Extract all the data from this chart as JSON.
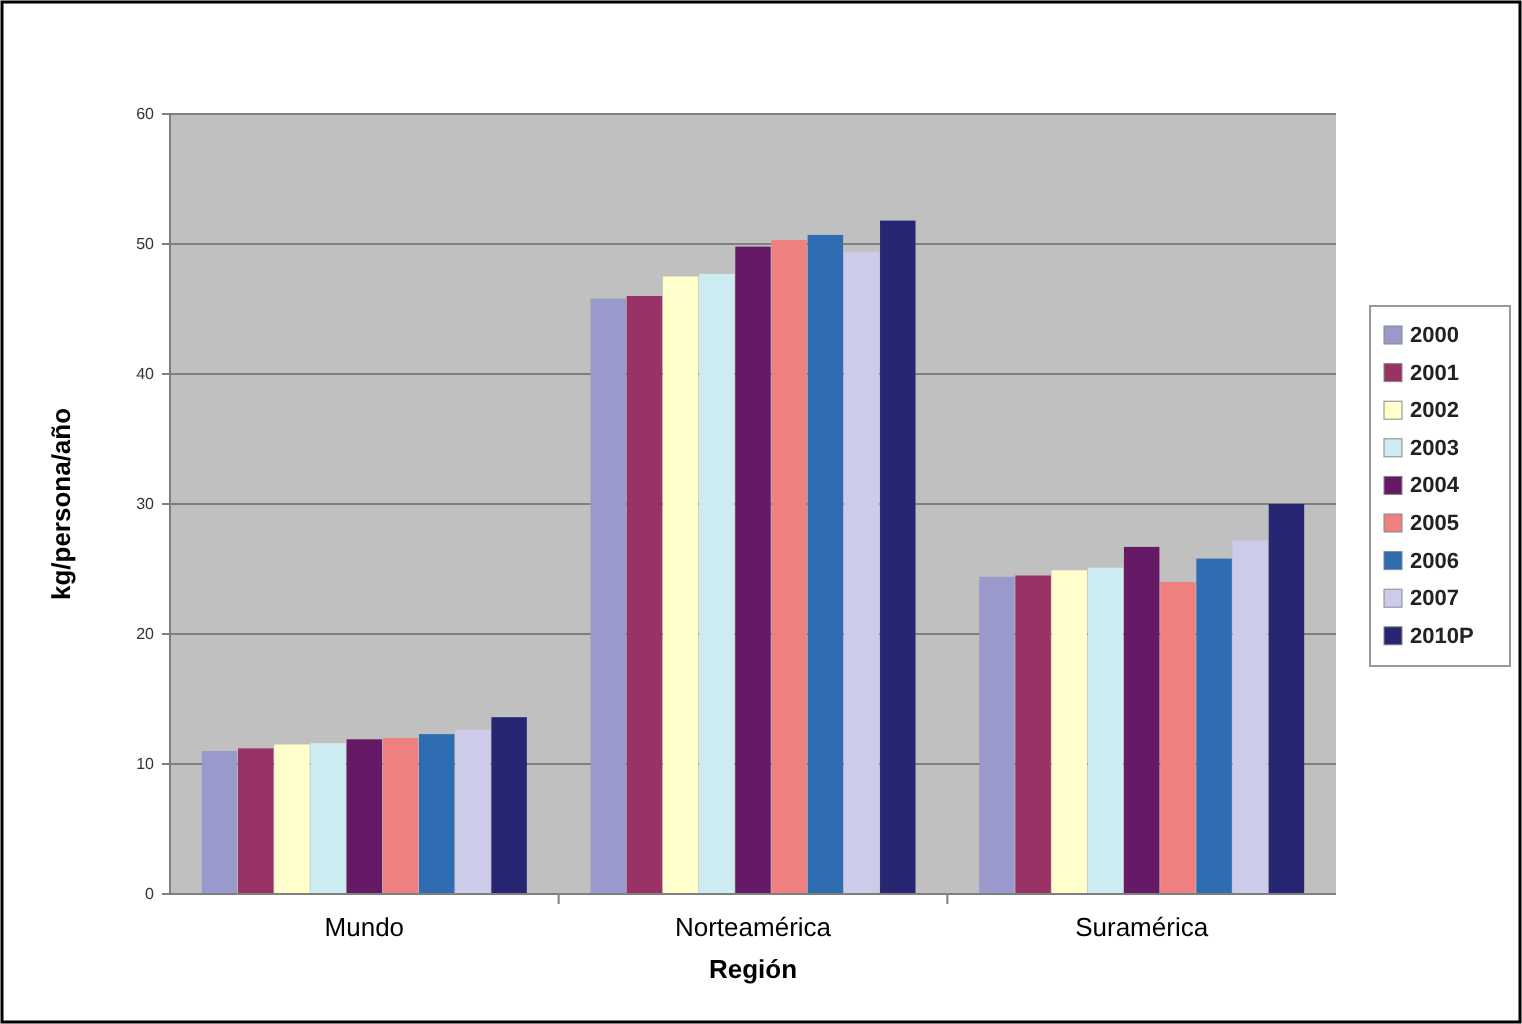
{
  "chart_data": {
    "type": "bar",
    "xlabel": "Región",
    "ylabel": "kg/persona/año",
    "categories": [
      "Mundo",
      "Norteamérica",
      "Suramérica"
    ],
    "series": [
      {
        "name": "2000",
        "color": "#9999cc",
        "values": [
          11,
          45.8,
          24.4
        ]
      },
      {
        "name": "2001",
        "color": "#993366",
        "values": [
          11.2,
          46,
          24.5
        ]
      },
      {
        "name": "2002",
        "color": "#ffffcc",
        "values": [
          11.5,
          47.5,
          24.9
        ]
      },
      {
        "name": "2003",
        "color": "#ccecf2",
        "values": [
          11.6,
          47.7,
          25.1
        ]
      },
      {
        "name": "2004",
        "color": "#661a66",
        "values": [
          11.9,
          49.8,
          26.7
        ]
      },
      {
        "name": "2005",
        "color": "#f08080",
        "values": [
          12,
          50.3,
          24
        ]
      },
      {
        "name": "2006",
        "color": "#2f6db3",
        "values": [
          12.3,
          50.7,
          25.8
        ]
      },
      {
        "name": "2007",
        "color": "#ccccea",
        "values": [
          12.6,
          49.4,
          27.2
        ]
      },
      {
        "name": "2010P",
        "color": "#262673",
        "values": [
          13.6,
          51.8,
          30
        ]
      }
    ],
    "ylim": [
      0,
      60
    ],
    "yticks": [
      0,
      10,
      20,
      30,
      40,
      50,
      60
    ],
    "grid": "y",
    "legend": "right"
  }
}
